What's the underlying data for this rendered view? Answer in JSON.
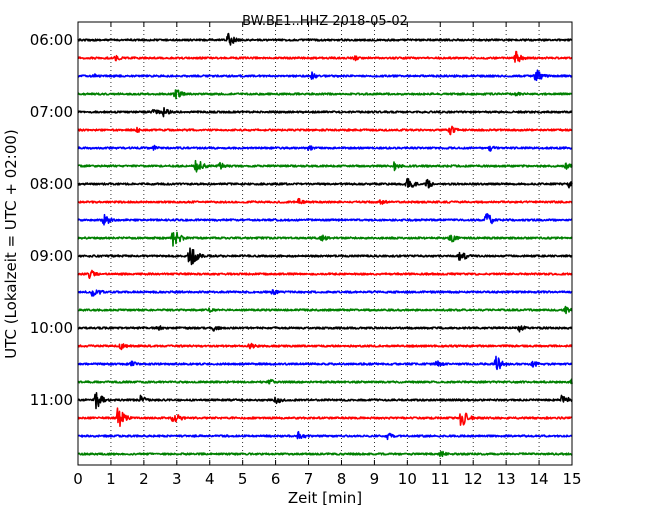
{
  "chart_data": {
    "type": "line",
    "title": "BW.BE1..HHZ 2018-05-02",
    "xlabel": "Zeit  [min]",
    "ylabel": "UTC (Lokalzeit = UTC + 02:00)",
    "xlim": [
      0,
      15
    ],
    "xticks": [
      0,
      1,
      2,
      3,
      4,
      5,
      6,
      7,
      8,
      9,
      10,
      11,
      12,
      13,
      14,
      15
    ],
    "ylim_minutes_from_start": [
      -15,
      345
    ],
    "trace_interval_minutes": 15,
    "trace_start": "06:00",
    "yticks": [
      {
        "label": "06:00",
        "trace_index": 0
      },
      {
        "label": "07:00",
        "trace_index": 4
      },
      {
        "label": "08:00",
        "trace_index": 8
      },
      {
        "label": "09:00",
        "trace_index": 12
      },
      {
        "label": "10:00",
        "trace_index": 16
      },
      {
        "label": "11:00",
        "trace_index": 20
      }
    ],
    "grid": "vertical dotted at each minute",
    "color_cycle": [
      "#000000",
      "#ff0000",
      "#0000ff",
      "#008000"
    ],
    "series": [
      {
        "start": "06:00",
        "color": "#000000",
        "events": [
          [
            4.55,
            8
          ]
        ]
      },
      {
        "start": "06:15",
        "color": "#ff0000",
        "events": [
          [
            1.15,
            3
          ],
          [
            8.4,
            3
          ],
          [
            13.3,
            7
          ]
        ]
      },
      {
        "start": "06:30",
        "color": "#0000ff",
        "events": [
          [
            0.5,
            3
          ],
          [
            7.1,
            4
          ],
          [
            13.9,
            8
          ]
        ]
      },
      {
        "start": "06:45",
        "color": "#008000",
        "events": [
          [
            2.95,
            7
          ],
          [
            13.3,
            3
          ]
        ]
      },
      {
        "start": "07:00",
        "color": "#000000",
        "events": [
          [
            2.3,
            4
          ],
          [
            2.6,
            5
          ]
        ]
      },
      {
        "start": "07:15",
        "color": "#ff0000",
        "events": [
          [
            1.8,
            3
          ],
          [
            11.3,
            5
          ]
        ]
      },
      {
        "start": "07:30",
        "color": "#0000ff",
        "events": [
          [
            2.3,
            3
          ],
          [
            7.0,
            3
          ],
          [
            12.5,
            4
          ]
        ]
      },
      {
        "start": "07:45",
        "color": "#008000",
        "events": [
          [
            3.6,
            9
          ],
          [
            4.3,
            4
          ],
          [
            9.6,
            5
          ],
          [
            14.8,
            4
          ]
        ]
      },
      {
        "start": "08:00",
        "color": "#000000",
        "events": [
          [
            10.0,
            8
          ],
          [
            10.6,
            5
          ],
          [
            14.9,
            4
          ]
        ]
      },
      {
        "start": "08:15",
        "color": "#ff0000",
        "events": [
          [
            6.7,
            4
          ],
          [
            9.2,
            4
          ]
        ]
      },
      {
        "start": "08:30",
        "color": "#0000ff",
        "events": [
          [
            0.8,
            7
          ],
          [
            12.4,
            9
          ]
        ]
      },
      {
        "start": "08:45",
        "color": "#008000",
        "events": [
          [
            2.9,
            12
          ],
          [
            7.4,
            4
          ],
          [
            11.3,
            6
          ]
        ]
      },
      {
        "start": "09:00",
        "color": "#000000",
        "events": [
          [
            3.4,
            13
          ],
          [
            11.6,
            7
          ]
        ]
      },
      {
        "start": "09:15",
        "color": "#ff0000",
        "events": [
          [
            0.35,
            6
          ]
        ]
      },
      {
        "start": "09:30",
        "color": "#0000ff",
        "events": [
          [
            0.45,
            7
          ],
          [
            5.9,
            4
          ]
        ]
      },
      {
        "start": "09:45",
        "color": "#008000",
        "events": [
          [
            4.0,
            3
          ],
          [
            14.8,
            4
          ]
        ]
      },
      {
        "start": "10:00",
        "color": "#000000",
        "events": [
          [
            2.4,
            4
          ],
          [
            4.1,
            4
          ],
          [
            13.4,
            4
          ]
        ]
      },
      {
        "start": "10:15",
        "color": "#ff0000",
        "events": [
          [
            1.3,
            4
          ],
          [
            5.2,
            5
          ]
        ]
      },
      {
        "start": "10:30",
        "color": "#0000ff",
        "events": [
          [
            1.6,
            4
          ],
          [
            10.9,
            4
          ],
          [
            12.7,
            9
          ],
          [
            13.8,
            4
          ]
        ]
      },
      {
        "start": "10:45",
        "color": "#008000",
        "events": [
          [
            5.8,
            4
          ],
          [
            15.0,
            4
          ]
        ]
      },
      {
        "start": "11:00",
        "color": "#000000",
        "events": [
          [
            0.55,
            10
          ],
          [
            1.9,
            5
          ],
          [
            6.0,
            5
          ],
          [
            14.7,
            7
          ]
        ]
      },
      {
        "start": "11:15",
        "color": "#ff0000",
        "events": [
          [
            1.2,
            13
          ],
          [
            2.9,
            8
          ],
          [
            11.6,
            13
          ]
        ]
      },
      {
        "start": "11:30",
        "color": "#0000ff",
        "events": [
          [
            6.7,
            5
          ],
          [
            9.4,
            4
          ]
        ]
      },
      {
        "start": "11:45",
        "color": "#008000",
        "events": [
          [
            11.0,
            4
          ]
        ]
      }
    ]
  }
}
